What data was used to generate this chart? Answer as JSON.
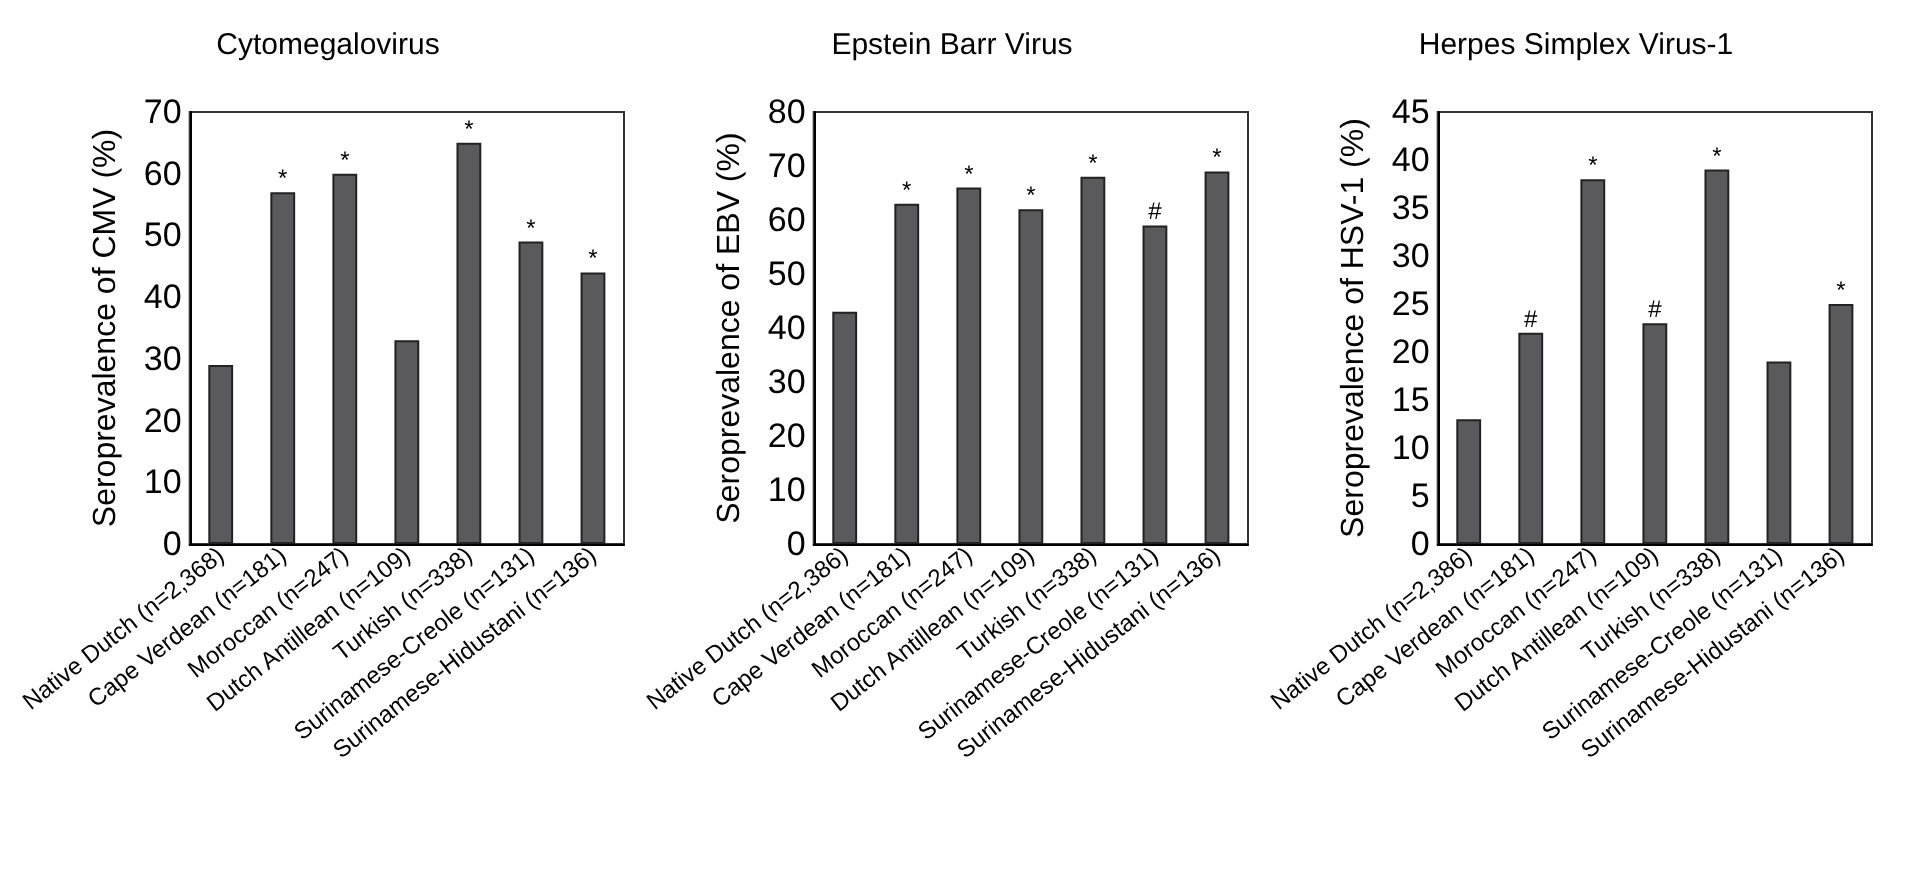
{
  "chart_data": [
    {
      "type": "bar",
      "title": "Cytomegalovirus",
      "ylabel": "Seroprevalence of CMV (%)",
      "categories": [
        "Native Dutch (n=2,368)",
        "Cape Verdean (n=181)",
        "Moroccan (n=247)",
        "Dutch Antillean (n=109)",
        "Turkish (n=338)",
        "Surinamese-Creole (n=131)",
        "Surinamese-Hidustani (n=136)"
      ],
      "values": [
        29,
        57,
        60,
        33,
        65,
        49,
        44
      ],
      "color": "#5a5a5c",
      "ylim": [
        0,
        70
      ],
      "yticks": [
        0,
        10,
        20,
        30,
        40,
        50,
        60,
        70
      ],
      "grid": false,
      "annotations": [
        {
          "text": "*",
          "x": "Cape Verdean (n=181)",
          "y": 57
        },
        {
          "text": "*",
          "x": "Moroccan (n=247)",
          "y": 60
        },
        {
          "text": "*",
          "x": "Turkish (n=338)",
          "y": 65
        },
        {
          "text": "*",
          "x": "Surinamese-Creole (n=131)",
          "y": 49
        },
        {
          "text": "*",
          "x": "Surinamese-Hidustani (n=136)",
          "y": 44
        }
      ]
    },
    {
      "type": "bar",
      "title": "Epstein Barr Virus",
      "ylabel": "Seroprevalence of EBV (%)",
      "categories": [
        "Native Dutch (n=2,386)",
        "Cape Verdean (n=181)",
        "Moroccan (n=247)",
        "Dutch Antillean (n=109)",
        "Turkish (n=338)",
        "Surinamese-Creole (n=131)",
        "Surinamese-Hidustani (n=136)"
      ],
      "values": [
        43,
        63,
        66,
        62,
        68,
        59,
        69
      ],
      "color": "#5a5a5c",
      "ylim": [
        0,
        80
      ],
      "yticks": [
        0,
        10,
        20,
        30,
        40,
        50,
        60,
        70,
        80
      ],
      "grid": false,
      "annotations": [
        {
          "text": "*",
          "x": "Cape Verdean (n=181)",
          "y": 63
        },
        {
          "text": "*",
          "x": "Moroccan (n=247)",
          "y": 66
        },
        {
          "text": "*",
          "x": "Dutch Antillean (n=109)",
          "y": 62
        },
        {
          "text": "*",
          "x": "Turkish (n=338)",
          "y": 68
        },
        {
          "text": "#",
          "x": "Surinamese-Creole (n=131)",
          "y": 59
        },
        {
          "text": "*",
          "x": "Surinamese-Hidustani (n=136)",
          "y": 69
        }
      ]
    },
    {
      "type": "bar",
      "title": "Herpes Simplex Virus-1",
      "ylabel": "Seroprevalence of HSV-1 (%)",
      "categories": [
        "Native Dutch (n=2,386)",
        "Cape Verdean (n=181)",
        "Moroccan (n=247)",
        "Dutch Antillean (n=109)",
        "Turkish (n=338)",
        "Surinamese-Creole (n=131)",
        "Surinamese-Hidustani (n=136)"
      ],
      "values": [
        13,
        22,
        38,
        23,
        39,
        19,
        25
      ],
      "color": "#5a5a5c",
      "ylim": [
        0,
        45
      ],
      "yticks": [
        0,
        5,
        10,
        15,
        20,
        25,
        30,
        35,
        40,
        45
      ],
      "grid": false,
      "annotations": [
        {
          "text": "#",
          "x": "Cape Verdean (n=181)",
          "y": 22
        },
        {
          "text": "*",
          "x": "Moroccan (n=247)",
          "y": 38
        },
        {
          "text": "#",
          "x": "Dutch Antillean (n=109)",
          "y": 23
        },
        {
          "text": "*",
          "x": "Turkish (n=338)",
          "y": 39
        },
        {
          "text": "*",
          "x": "Surinamese-Hidustani (n=136)",
          "y": 25
        }
      ]
    }
  ]
}
